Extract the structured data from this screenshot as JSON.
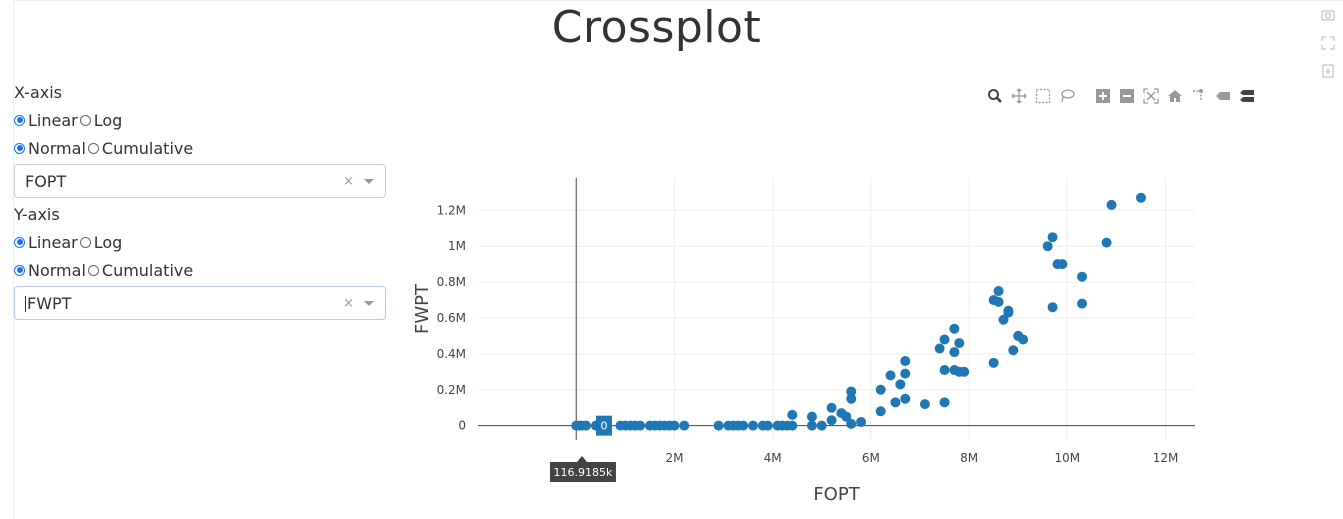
{
  "page": {
    "title": "Crossplot"
  },
  "xaxis_controls": {
    "label": "X-axis",
    "scale_options": [
      {
        "label": "Linear",
        "selected": true
      },
      {
        "label": "Log",
        "selected": false
      }
    ],
    "mode_options": [
      {
        "label": "Normal",
        "selected": true
      },
      {
        "label": "Cumulative",
        "selected": false
      }
    ],
    "dropdown": {
      "value": "FOPT",
      "clear": "×"
    }
  },
  "yaxis_controls": {
    "label": "Y-axis",
    "scale_options": [
      {
        "label": "Linear",
        "selected": true
      },
      {
        "label": "Log",
        "selected": false
      }
    ],
    "mode_options": [
      {
        "label": "Normal",
        "selected": true
      },
      {
        "label": "Cumulative",
        "selected": false
      }
    ],
    "dropdown": {
      "value": "FWPT",
      "clear": "×"
    }
  },
  "modebar": {
    "icons": [
      "zoom-icon",
      "pan-icon",
      "box-select-icon",
      "lasso-select-icon",
      "zoom-in-icon",
      "zoom-out-icon",
      "autoscale-icon",
      "reset-axes-icon",
      "spike-lines-icon",
      "hover-closest-icon",
      "hover-compare-icon"
    ]
  },
  "side_icons": [
    "camera-icon",
    "fullscreen-icon",
    "download-icon"
  ],
  "hover": {
    "x_label": "116.9185k",
    "y_label": "0"
  },
  "colors": {
    "marker": "#1f77b4",
    "grid": "#eeeeee",
    "axis_text": "#444444"
  },
  "chart_data": {
    "type": "scatter",
    "xlabel": "FOPT",
    "ylabel": "FWPT",
    "xlim": [
      -2000000,
      12600000
    ],
    "ylim": [
      -80000,
      1380000
    ],
    "xticks": [
      {
        "value": 2000000,
        "label": "2M"
      },
      {
        "value": 4000000,
        "label": "4M"
      },
      {
        "value": 6000000,
        "label": "6M"
      },
      {
        "value": 8000000,
        "label": "8M"
      },
      {
        "value": 10000000,
        "label": "10M"
      },
      {
        "value": 12000000,
        "label": "12M"
      }
    ],
    "yticks": [
      {
        "value": 0,
        "label": "0"
      },
      {
        "value": 200000,
        "label": "0.2M"
      },
      {
        "value": 400000,
        "label": "0.4M"
      },
      {
        "value": 600000,
        "label": "0.6M"
      },
      {
        "value": 800000,
        "label": "0.8M"
      },
      {
        "value": 1000000,
        "label": "1M"
      },
      {
        "value": 1200000,
        "label": "1.2M"
      }
    ],
    "grid": true,
    "series": [
      {
        "x": [
          0,
          60000,
          116918,
          200000,
          400000,
          900000,
          1000000,
          1100000,
          1200000,
          1300000,
          1500000,
          1600000,
          1700000,
          1800000,
          1900000,
          2000000,
          2200000,
          2900000,
          3100000,
          3200000,
          3300000,
          3400000,
          3600000,
          3800000,
          3900000,
          4100000,
          4200000,
          4300000,
          4400000,
          4400000,
          4800000,
          4800000,
          5000000,
          5200000,
          5200000,
          5400000,
          5500000,
          5600000,
          5600000,
          5600000,
          5800000,
          6200000,
          6200000,
          6400000,
          6500000,
          6600000,
          6700000,
          6700000,
          6700000,
          7100000,
          7400000,
          7500000,
          7500000,
          7500000,
          7700000,
          7700000,
          7700000,
          7800000,
          7800000,
          7900000,
          8500000,
          8500000,
          8600000,
          8600000,
          8700000,
          8800000,
          8800000,
          8900000,
          9000000,
          9100000,
          9600000,
          9700000,
          9700000,
          9800000,
          9900000,
          10300000,
          10300000,
          10800000,
          10900000,
          11500000
        ],
        "y": [
          0,
          0,
          0,
          0,
          0,
          0,
          0,
          0,
          0,
          0,
          0,
          0,
          0,
          0,
          0,
          0,
          0,
          0,
          0,
          0,
          0,
          0,
          0,
          0,
          0,
          0,
          0,
          0,
          0,
          60000,
          0,
          50000,
          0,
          30000,
          100000,
          70000,
          50000,
          10000,
          150000,
          190000,
          20000,
          80000,
          200000,
          280000,
          130000,
          230000,
          360000,
          290000,
          150000,
          120000,
          430000,
          310000,
          480000,
          130000,
          540000,
          410000,
          310000,
          460000,
          300000,
          300000,
          350000,
          700000,
          750000,
          690000,
          590000,
          630000,
          640000,
          420000,
          500000,
          480000,
          1000000,
          1050000,
          660000,
          900000,
          900000,
          680000,
          830000,
          1020000,
          1230000,
          1270000
        ]
      }
    ]
  }
}
